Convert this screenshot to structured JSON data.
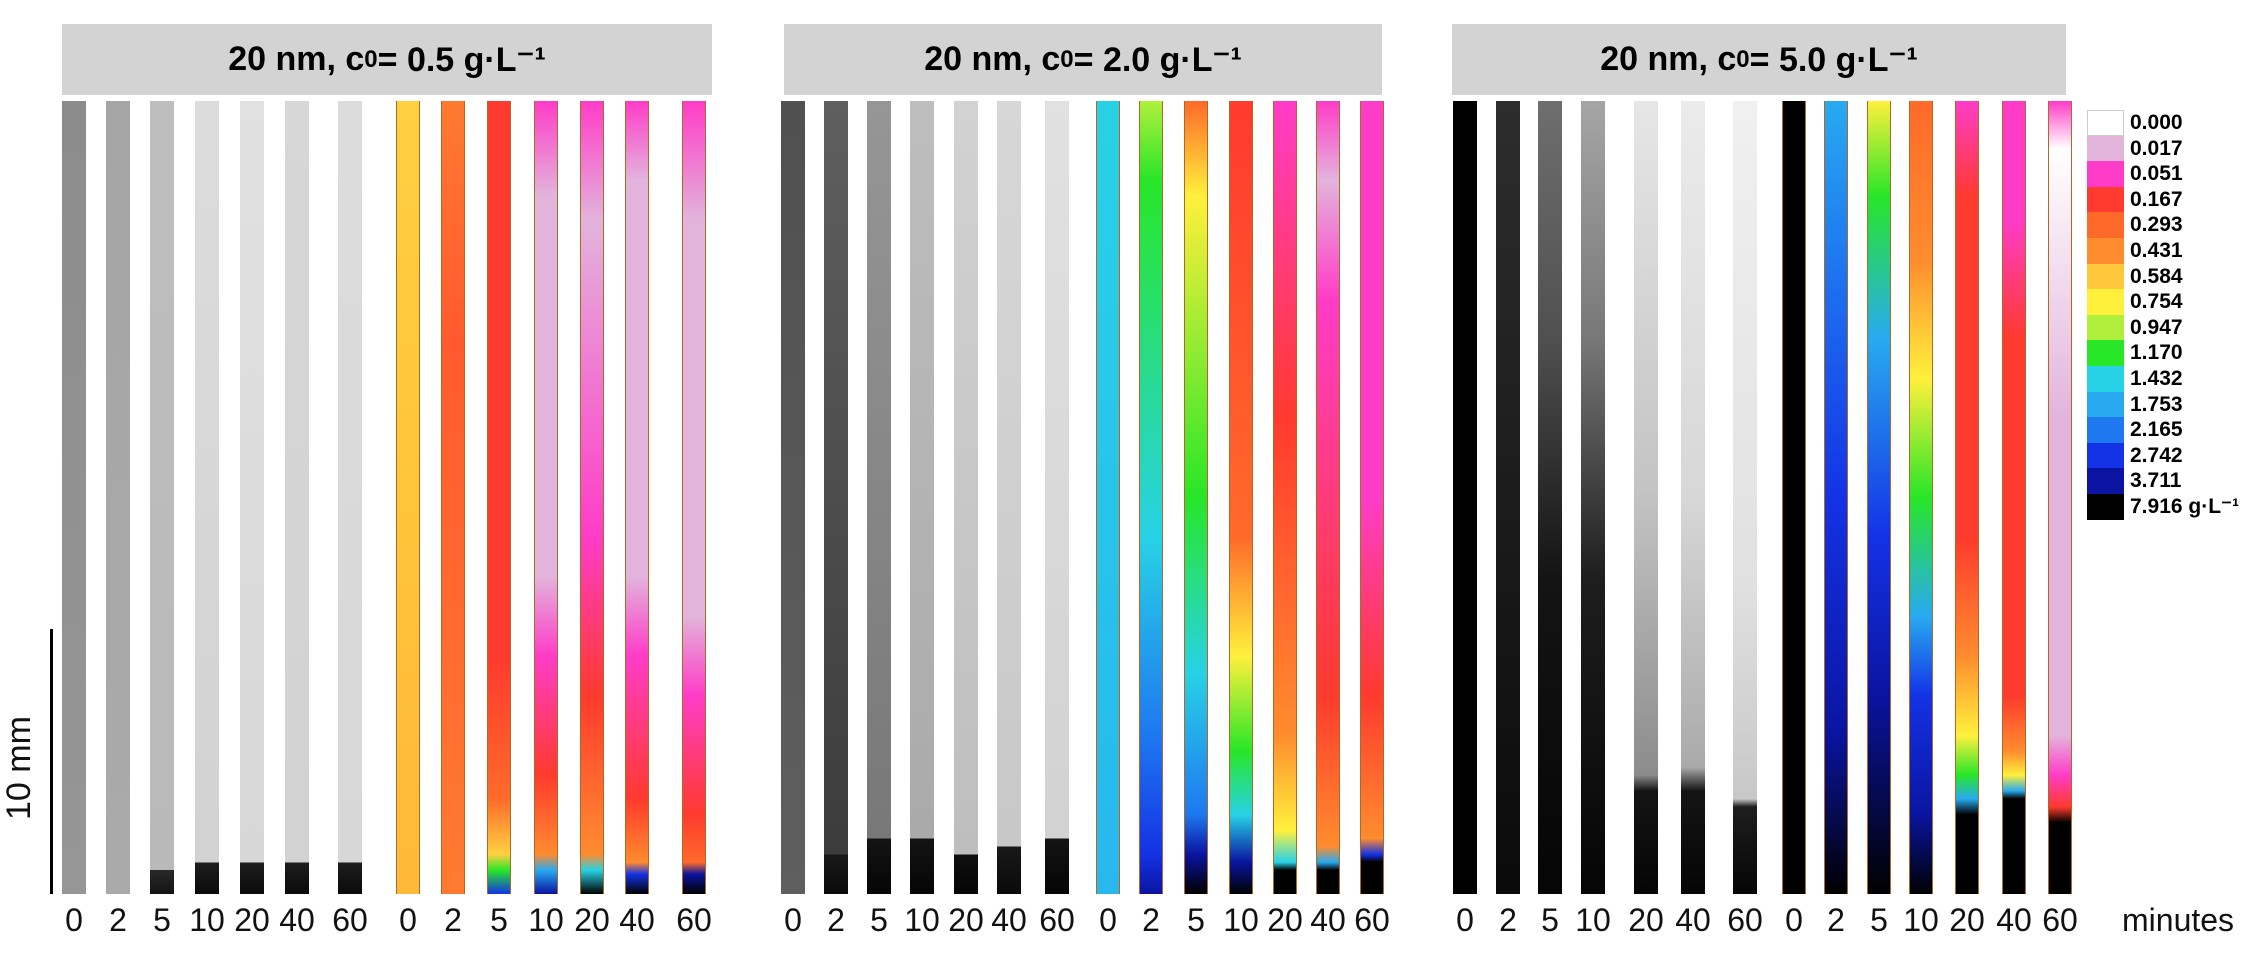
{
  "panels": [
    {
      "title_prefix": "20 nm, c",
      "title_sub": "0",
      "title_suffix": " = 0.5 g·L⁻¹"
    },
    {
      "title_prefix": "20 nm, c",
      "title_sub": "0",
      "title_suffix": " = 2.0 g·L⁻¹"
    },
    {
      "title_prefix": "20 nm, c",
      "title_sub": "0",
      "title_suffix": " = 5.0 g·L⁻¹"
    }
  ],
  "time_ticks": [
    "0",
    "2",
    "5",
    "10",
    "20",
    "40",
    "60"
  ],
  "time_unit": "minutes",
  "scale_bar_label": "10 mm",
  "legend": {
    "unit": "g·L⁻¹",
    "items": [
      {
        "label": "0.000",
        "color": "#ffffff"
      },
      {
        "label": "0.017",
        "color": "#e2b4dc"
      },
      {
        "label": "0.051",
        "color": "#ff3cc8"
      },
      {
        "label": "0.167",
        "color": "#ff3a2e"
      },
      {
        "label": "0.293",
        "color": "#ff6a2a"
      },
      {
        "label": "0.431",
        "color": "#ff8c2e"
      },
      {
        "label": "0.584",
        "color": "#ffc83c"
      },
      {
        "label": "0.754",
        "color": "#fff03c"
      },
      {
        "label": "0.947",
        "color": "#b0f03c"
      },
      {
        "label": "1.170",
        "color": "#28e628"
      },
      {
        "label": "1.432",
        "color": "#28d2e6"
      },
      {
        "label": "1.753",
        "color": "#28aaf0"
      },
      {
        "label": "2.165",
        "color": "#1e78f0"
      },
      {
        "label": "2.742",
        "color": "#1432e6"
      },
      {
        "label": "3.711",
        "color": "#0a14a0"
      },
      {
        "label": "7.916 g·L⁻¹",
        "color": "#000000"
      }
    ]
  }
}
